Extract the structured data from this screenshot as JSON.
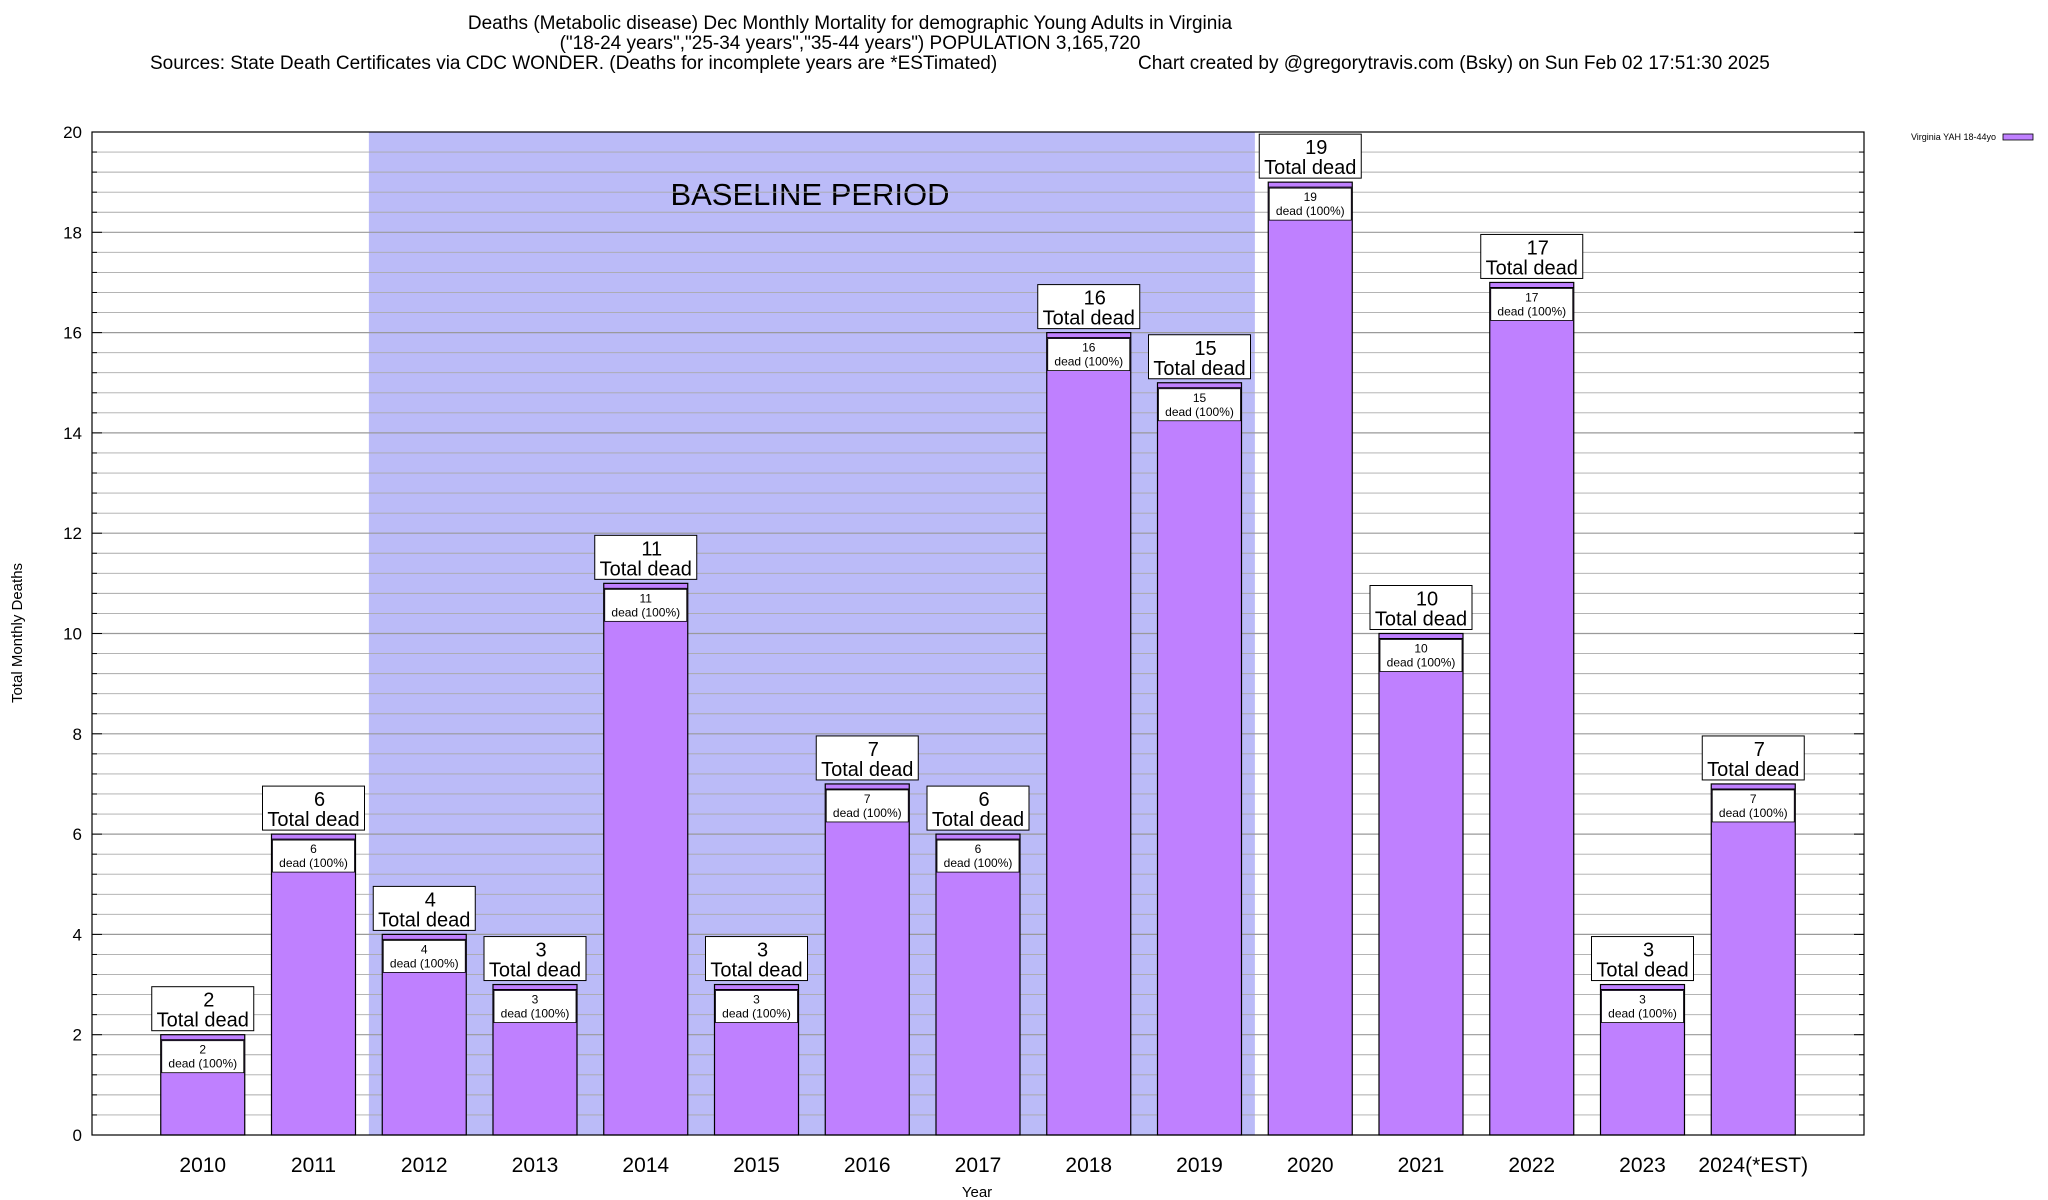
{
  "header": {
    "title": "Deaths (Metabolic disease) Dec Monthly Mortality for demographic Young Adults in Virginia",
    "subtitle": "(\"18-24 years\",\"25-34 years\",\"35-44 years\") POPULATION 3,165,720",
    "source": "Sources: State Death Certificates via CDC WONDER. (Deaths for incomplete years are *ESTimated)",
    "credit": "Chart created by @gregorytravis.com (Bsky) on Sun Feb 02 17:51:30 2025"
  },
  "chart_data": {
    "type": "bar",
    "xlabel": "Year",
    "ylabel": "Total Monthly Deaths",
    "ylim": [
      0,
      20
    ],
    "y_ticks": [
      0,
      2,
      4,
      6,
      8,
      10,
      12,
      14,
      16,
      18,
      20
    ],
    "grid": "horizontal",
    "legend": {
      "position": "top-right",
      "label": "Virginia YAH 18-44yo"
    },
    "colors": {
      "bar": "#bf80ff",
      "baseline_band": "#bbbbf8",
      "grid": "#aaaaaa"
    },
    "categories": [
      "2010",
      "2011",
      "2012",
      "2013",
      "2014",
      "2015",
      "2016",
      "2017",
      "2018",
      "2019",
      "2020",
      "2021",
      "2022",
      "2023",
      "2024(*EST)"
    ],
    "series": [
      {
        "name": "Virginia YAH 18-44yo",
        "values": [
          2,
          6,
          4,
          3,
          11,
          3,
          7,
          6,
          16,
          15,
          19,
          10,
          17,
          3,
          7
        ]
      }
    ],
    "total_label_suffix": "Total dead",
    "bar_label_suffix": "dead (100%)",
    "baseline": {
      "label": "BASELINE PERIOD",
      "from": "2012",
      "to": "2019"
    }
  }
}
